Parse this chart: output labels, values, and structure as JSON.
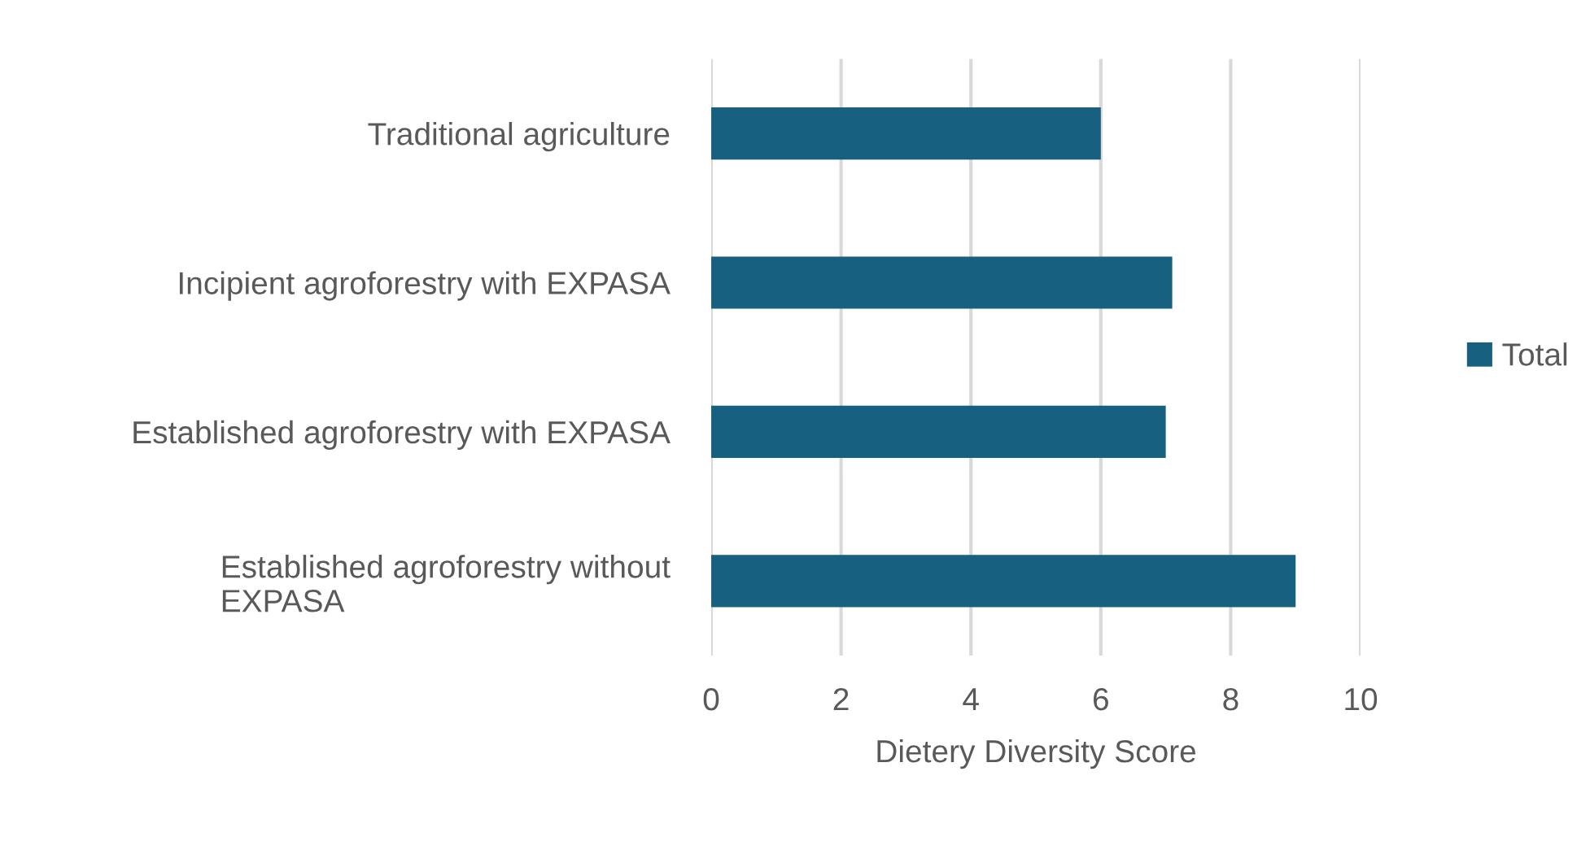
{
  "chart_data": {
    "type": "bar",
    "orientation": "horizontal",
    "categories": [
      "Traditional agriculture",
      "Incipient agroforestry with EXPASA",
      "Established agroforestry with EXPASA",
      "Established agroforestry without\nEXPASA"
    ],
    "series": [
      {
        "name": "Total",
        "color": "#18607f",
        "values": [
          6,
          7.1,
          7,
          9
        ]
      }
    ],
    "xlabel": "Dietery Diversity Score",
    "xlim": [
      0,
      10
    ],
    "xticks": [
      0,
      2,
      4,
      6,
      8,
      10
    ],
    "grid": "x",
    "legend": "right"
  }
}
